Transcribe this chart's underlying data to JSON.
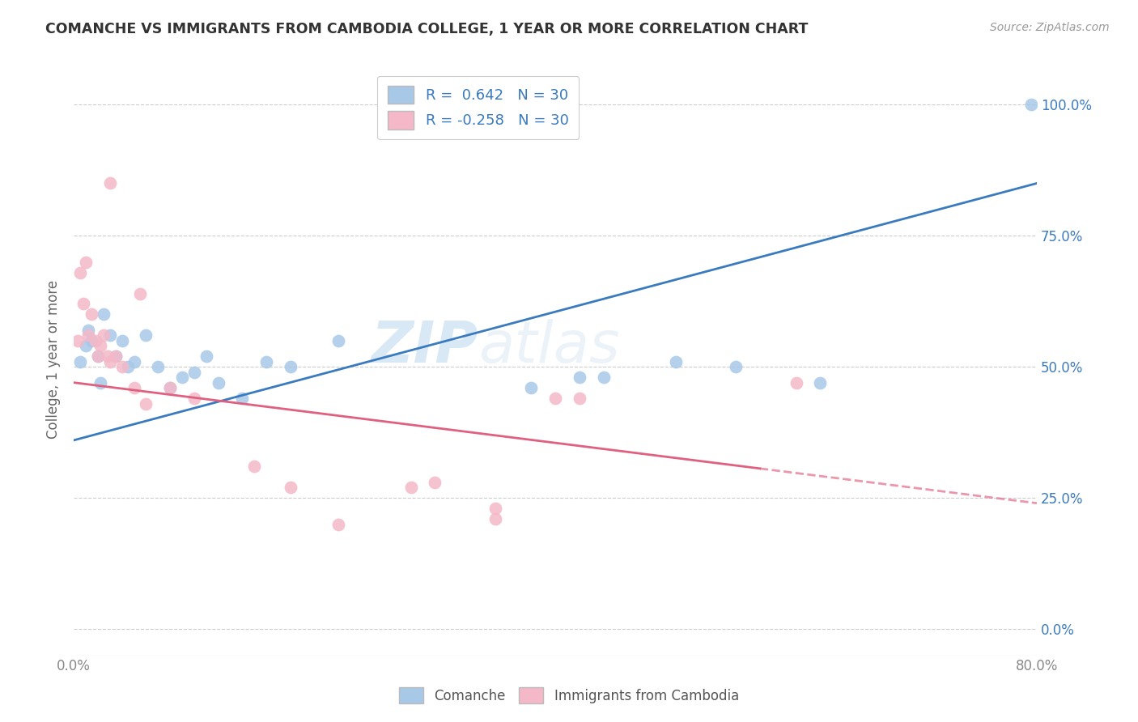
{
  "title": "COMANCHE VS IMMIGRANTS FROM CAMBODIA COLLEGE, 1 YEAR OR MORE CORRELATION CHART",
  "source": "Source: ZipAtlas.com",
  "ylabel": "College, 1 year or more",
  "xlim": [
    0,
    80
  ],
  "ylim": [
    -5,
    108
  ],
  "ylabel_vals": [
    0,
    25,
    50,
    75,
    100
  ],
  "xlabel_vals": [
    0,
    80
  ],
  "xlabel_labels": [
    "0.0%",
    "80.0%"
  ],
  "watermark_zip": "ZIP",
  "watermark_atlas": "atlas",
  "blue_color": "#a8c8e8",
  "pink_color": "#f4b8c8",
  "blue_line_color": "#3a7abf",
  "pink_line_color": "#e06080",
  "legend_text_color": "#3a7abf",
  "blue_scatter_x": [
    0.5,
    1.0,
    1.2,
    1.5,
    2.0,
    2.2,
    2.5,
    3.0,
    3.5,
    4.0,
    4.5,
    5.0,
    6.0,
    7.0,
    8.0,
    9.0,
    10.0,
    11.0,
    12.0,
    14.0,
    16.0,
    18.0,
    22.0,
    38.0,
    42.0,
    44.0,
    50.0,
    55.0,
    62.0,
    79.5
  ],
  "blue_scatter_y": [
    51,
    54,
    57,
    55,
    52,
    47,
    60,
    56,
    52,
    55,
    50,
    51,
    56,
    50,
    46,
    48,
    49,
    52,
    47,
    44,
    51,
    50,
    55,
    46,
    48,
    48,
    51,
    50,
    47,
    100
  ],
  "pink_scatter_x": [
    0.3,
    0.5,
    0.8,
    1.0,
    1.2,
    1.5,
    1.8,
    2.0,
    2.2,
    2.5,
    2.8,
    3.0,
    3.5,
    4.0,
    5.0,
    6.0,
    8.0,
    10.0,
    15.0,
    18.0,
    22.0,
    30.0,
    35.0,
    40.0,
    42.0,
    60.0,
    3.0,
    5.5,
    28.0,
    35.0
  ],
  "pink_scatter_y": [
    55,
    68,
    62,
    70,
    56,
    60,
    55,
    52,
    54,
    56,
    52,
    51,
    52,
    50,
    46,
    43,
    46,
    44,
    31,
    27,
    20,
    28,
    21,
    44,
    44,
    47,
    85,
    64,
    27,
    23
  ],
  "blue_trend_x0": 0,
  "blue_trend_y0": 36,
  "blue_trend_x1": 80,
  "blue_trend_y1": 85,
  "pink_trend_x0": 0,
  "pink_trend_y0": 47,
  "pink_trend_x1": 80,
  "pink_trend_y1": 24,
  "pink_solid_x1": 57,
  "legend_comanche": "Comanche",
  "legend_cambodia": "Immigrants from Cambodia",
  "background_color": "#ffffff",
  "grid_color": "#cccccc",
  "grid_linestyle": "--",
  "axis_color": "#888888",
  "right_axis_color": "#3a7abf",
  "title_color": "#333333",
  "source_color": "#999999",
  "ylabel_color": "#666666"
}
